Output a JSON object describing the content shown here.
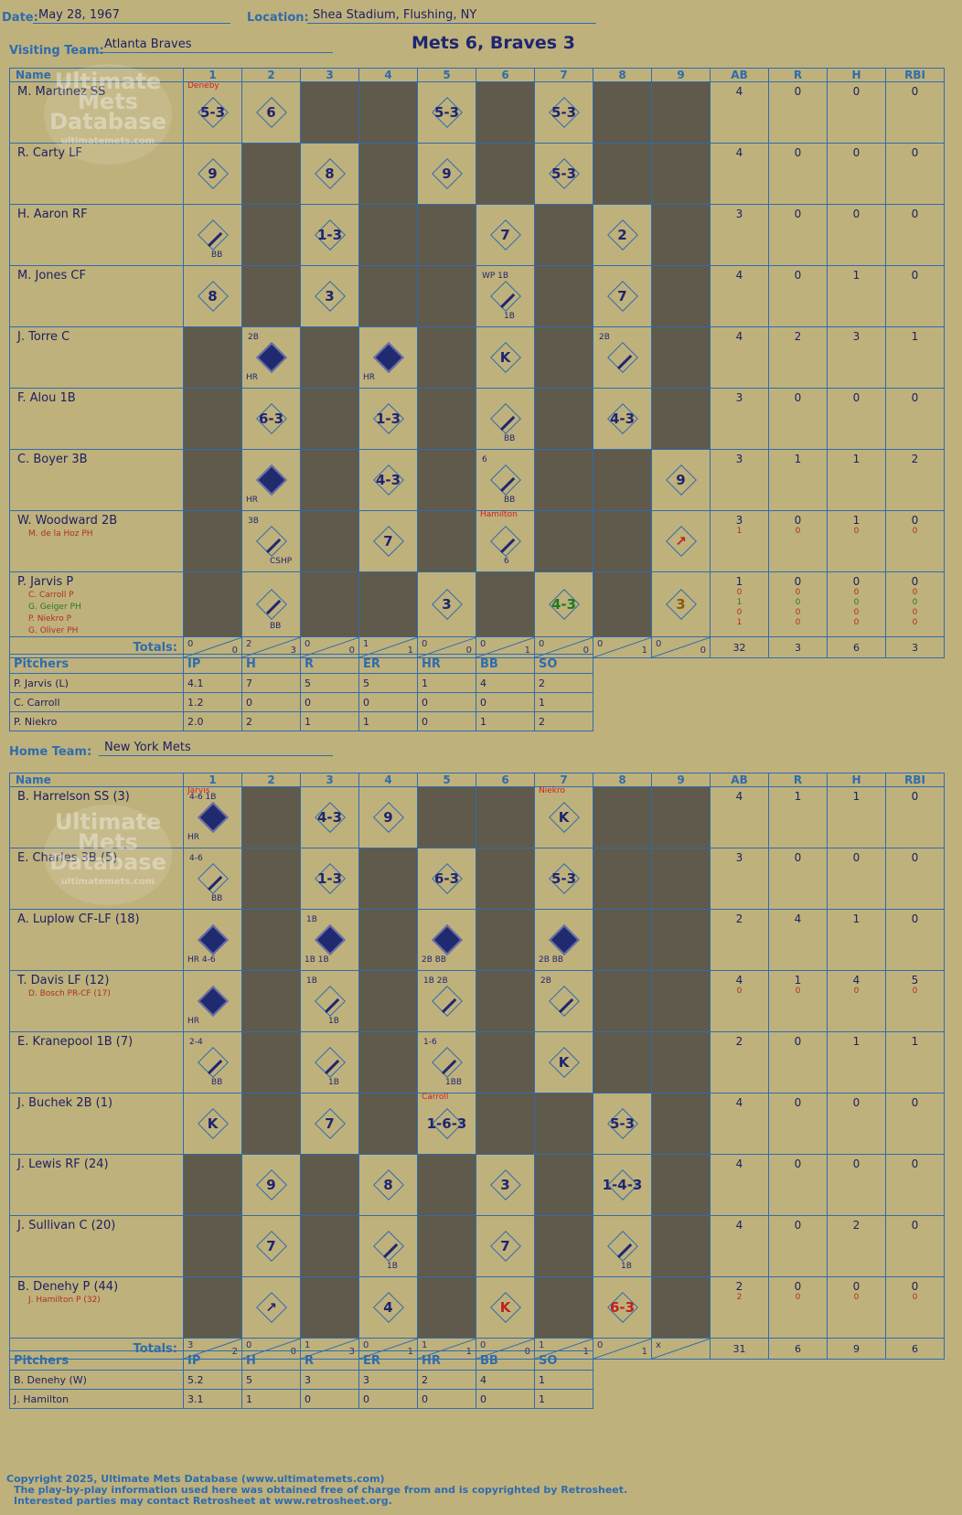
{
  "header": {
    "date_label": "Date:",
    "date": "May 28, 1967",
    "location_label": "Location:",
    "location": "Shea Stadium, Flushing, NY",
    "visiting_label": "Visiting Team:",
    "visiting_team": "Atlanta Braves",
    "home_label": "Home Team:",
    "home_team": "New York Mets",
    "score": "Mets 6, Braves 3"
  },
  "columns": {
    "name": "Name",
    "innings": [
      "1",
      "2",
      "3",
      "4",
      "5",
      "6",
      "7",
      "8",
      "9"
    ],
    "stats": [
      "AB",
      "R",
      "H",
      "RBI"
    ]
  },
  "pitch_columns": [
    "IP",
    "H",
    "R",
    "ER",
    "HR",
    "BB",
    "SO"
  ],
  "labels": {
    "totals": "Totals:",
    "pitchers": "Pitchers",
    "r": "R",
    "h": "H"
  },
  "watermark": {
    "line1": "Ultimate",
    "line2": "Mets",
    "line3": "Database",
    "url": "ultimatemets.com"
  },
  "visitors": {
    "players": [
      {
        "name": "M. Martinez SS",
        "subs": [],
        "stats": [
          [
            "4"
          ],
          [
            "0"
          ],
          [
            "0"
          ],
          [
            "0"
          ]
        ]
      },
      {
        "name": "R. Carty LF",
        "subs": [],
        "stats": [
          [
            "4"
          ],
          [
            "0"
          ],
          [
            "0"
          ],
          [
            "0"
          ]
        ]
      },
      {
        "name": "H. Aaron RF",
        "subs": [],
        "stats": [
          [
            "3"
          ],
          [
            "0"
          ],
          [
            "0"
          ],
          [
            "0"
          ]
        ]
      },
      {
        "name": "M. Jones CF",
        "subs": [],
        "stats": [
          [
            "4"
          ],
          [
            "0"
          ],
          [
            "1"
          ],
          [
            "0"
          ]
        ]
      },
      {
        "name": "J. Torre C",
        "subs": [],
        "stats": [
          [
            "4"
          ],
          [
            "2"
          ],
          [
            "3"
          ],
          [
            "1"
          ]
        ]
      },
      {
        "name": "F. Alou 1B",
        "subs": [],
        "stats": [
          [
            "3"
          ],
          [
            "0"
          ],
          [
            "0"
          ],
          [
            "0"
          ]
        ]
      },
      {
        "name": "C. Boyer 3B",
        "subs": [],
        "stats": [
          [
            "3"
          ],
          [
            "1"
          ],
          [
            "1"
          ],
          [
            "2"
          ]
        ]
      },
      {
        "name": "W. Woodward 2B",
        "subs": [
          "M. de la Hoz PH"
        ],
        "stats": [
          [
            "3",
            "1"
          ],
          [
            "0",
            "0"
          ],
          [
            "1",
            "0"
          ],
          [
            "0",
            "0"
          ]
        ]
      },
      {
        "name": "P. Jarvis P",
        "subs": [
          "C. Carroll P",
          "G. Geiger PH",
          "P. Niekro P",
          "G. Oliver PH"
        ],
        "stats": [
          [
            "1",
            "0",
            "1",
            "0",
            "1"
          ],
          [
            "0",
            "0",
            "0",
            "0",
            "0"
          ],
          [
            "0",
            "0",
            "0",
            "0",
            "0"
          ],
          [
            "0",
            "0",
            "0",
            "0",
            "0"
          ]
        ]
      }
    ],
    "cells": [
      [
        {
          "t": "5-3",
          "note": "Deneby"
        },
        {
          "t": "6"
        },
        null,
        null,
        {
          "t": "5-3"
        },
        null,
        {
          "t": "5-3"
        },
        null,
        null
      ],
      [
        {
          "t": "9"
        },
        null,
        {
          "t": "8"
        },
        null,
        {
          "t": "9"
        },
        null,
        {
          "t": "5-3"
        },
        null,
        null
      ],
      [
        {
          "t": "",
          "bb": "BB"
        },
        null,
        {
          "t": "1-3"
        },
        null,
        null,
        {
          "t": "7"
        },
        null,
        {
          "t": "2"
        },
        null
      ],
      [
        {
          "t": "8"
        },
        null,
        {
          "t": "3"
        },
        null,
        null,
        {
          "t": "",
          "bb": "1B",
          "top": "WP 1B"
        },
        null,
        {
          "t": "7"
        },
        null
      ],
      [
        null,
        {
          "t": "",
          "filled": true,
          "bb": "HR",
          "top": "2B"
        },
        null,
        {
          "t": "",
          "filled": true,
          "bb": "HR"
        },
        null,
        {
          "t": "K"
        },
        null,
        {
          "t": "",
          "top": "2B"
        },
        null
      ],
      [
        null,
        {
          "t": "6-3"
        },
        null,
        {
          "t": "1-3"
        },
        null,
        {
          "t": "",
          "bb": "BB"
        },
        null,
        {
          "t": "4-3"
        },
        null
      ],
      [
        null,
        {
          "t": "",
          "filled": true,
          "bb": "HR"
        },
        null,
        {
          "t": "4-3"
        },
        null,
        {
          "t": "",
          "bb": "BB",
          "top": "6"
        },
        null,
        null,
        {
          "t": "9"
        }
      ],
      [
        null,
        {
          "t": "",
          "bb": "CSHP",
          "top": "3B"
        },
        null,
        {
          "t": "7"
        },
        null,
        {
          "t": "",
          "bb": "6",
          "note": "Hamilton"
        },
        null,
        null,
        {
          "t": "↗",
          "cls": "red"
        }
      ],
      [
        null,
        {
          "t": "",
          "bb": "BB"
        },
        null,
        null,
        {
          "t": "3"
        },
        null,
        {
          "t": "4-3",
          "cls": "grn"
        },
        null,
        {
          "t": "3",
          "cls": "brn"
        }
      ]
    ],
    "dark": [
      [
        0,
        0,
        1,
        1,
        0,
        1,
        0,
        1,
        1
      ],
      [
        0,
        1,
        0,
        1,
        0,
        1,
        0,
        1,
        1
      ],
      [
        0,
        1,
        0,
        1,
        1,
        0,
        1,
        0,
        1
      ],
      [
        0,
        1,
        0,
        1,
        1,
        0,
        1,
        0,
        1
      ],
      [
        1,
        0,
        1,
        0,
        1,
        0,
        1,
        0,
        1
      ],
      [
        1,
        0,
        1,
        0,
        1,
        0,
        1,
        0,
        1
      ],
      [
        1,
        0,
        1,
        0,
        1,
        0,
        1,
        1,
        0
      ],
      [
        1,
        0,
        1,
        0,
        1,
        0,
        1,
        1,
        0
      ],
      [
        1,
        0,
        1,
        1,
        0,
        1,
        0,
        1,
        0
      ]
    ],
    "totals": [
      [
        "0",
        "0"
      ],
      [
        "2",
        "3"
      ],
      [
        "0",
        "0"
      ],
      [
        "1",
        "1"
      ],
      [
        "0",
        "0"
      ],
      [
        "0",
        "1"
      ],
      [
        "0",
        "0"
      ],
      [
        "0",
        "1"
      ],
      [
        "0",
        "0"
      ]
    ],
    "totals_stats": [
      "32",
      "3",
      "6",
      "3"
    ],
    "pitchers": [
      {
        "name": "P. Jarvis (L)",
        "v": [
          "4.1",
          "7",
          "5",
          "5",
          "1",
          "4",
          "2"
        ]
      },
      {
        "name": "C. Carroll",
        "v": [
          "1.2",
          "0",
          "0",
          "0",
          "0",
          "0",
          "1"
        ]
      },
      {
        "name": "P. Niekro",
        "v": [
          "2.0",
          "2",
          "1",
          "1",
          "0",
          "1",
          "2"
        ]
      }
    ]
  },
  "home": {
    "players": [
      {
        "name": "B. Harrelson SS (3)",
        "subs": [],
        "stats": [
          [
            "4"
          ],
          [
            "1"
          ],
          [
            "1"
          ],
          [
            "0"
          ]
        ]
      },
      {
        "name": "E. Charles 3B (5)",
        "subs": [],
        "stats": [
          [
            "3"
          ],
          [
            "0"
          ],
          [
            "0"
          ],
          [
            "0"
          ]
        ]
      },
      {
        "name": "A. Luplow CF-LF (18)",
        "subs": [],
        "stats": [
          [
            "2"
          ],
          [
            "4"
          ],
          [
            "1"
          ],
          [
            "0"
          ]
        ]
      },
      {
        "name": "T. Davis LF (12)",
        "subs": [
          "D. Bosch PR-CF (17)"
        ],
        "stats": [
          [
            "4",
            "0"
          ],
          [
            "1",
            "0"
          ],
          [
            "4",
            "0"
          ],
          [
            "5",
            "0"
          ]
        ]
      },
      {
        "name": "E. Kranepool 1B (7)",
        "subs": [],
        "stats": [
          [
            "2"
          ],
          [
            "0"
          ],
          [
            "1"
          ],
          [
            "1"
          ]
        ]
      },
      {
        "name": "J. Buchek 2B (1)",
        "subs": [],
        "stats": [
          [
            "4"
          ],
          [
            "0"
          ],
          [
            "0"
          ],
          [
            "0"
          ]
        ]
      },
      {
        "name": "J. Lewis RF (24)",
        "subs": [],
        "stats": [
          [
            "4"
          ],
          [
            "0"
          ],
          [
            "0"
          ],
          [
            "0"
          ]
        ]
      },
      {
        "name": "J. Sullivan C (20)",
        "subs": [],
        "stats": [
          [
            "4"
          ],
          [
            "0"
          ],
          [
            "2"
          ],
          [
            "0"
          ]
        ]
      },
      {
        "name": "B. Denehy P (44)",
        "subs": [
          "J. Hamilton P (32)"
        ],
        "stats": [
          [
            "2",
            "2"
          ],
          [
            "0",
            "0"
          ],
          [
            "0",
            "0"
          ],
          [
            "0",
            "0"
          ]
        ]
      }
    ],
    "cells": [
      [
        {
          "t": "",
          "filled": true,
          "bb": "HR",
          "top": "4-6 1B",
          "note": "Jarvis"
        },
        null,
        {
          "t": "4-3"
        },
        {
          "t": "9"
        },
        null,
        null,
        {
          "t": "K",
          "note": "Niekro"
        },
        null,
        null
      ],
      [
        {
          "t": "",
          "bb": "BB",
          "top": "4-6"
        },
        null,
        {
          "t": "1-3"
        },
        null,
        {
          "t": "6-3"
        },
        null,
        {
          "t": "5-3"
        },
        null,
        null
      ],
      [
        {
          "t": "",
          "filled": true,
          "bb": "HR 4-6"
        },
        null,
        {
          "t": "",
          "filled": true,
          "bb": "1B 1B",
          "top": "1B"
        },
        null,
        {
          "t": "",
          "filled": true,
          "bb": "2B BB"
        },
        null,
        {
          "t": "",
          "filled": true,
          "bb": "2B BB"
        },
        null,
        null
      ],
      [
        {
          "t": "",
          "filled": true,
          "bb": "HR"
        },
        null,
        {
          "t": "",
          "bb": "1B",
          "top": "1B"
        },
        null,
        {
          "t": "",
          "top": "1B 2B"
        },
        null,
        {
          "t": "",
          "top": "2B"
        },
        null,
        null
      ],
      [
        {
          "t": "",
          "bb": "BB",
          "top": "2-4"
        },
        null,
        {
          "t": "",
          "bb": "1B"
        },
        null,
        {
          "t": "",
          "bb": "1BB",
          "top": "1-6"
        },
        null,
        {
          "t": "K"
        },
        null,
        null
      ],
      [
        {
          "t": "K"
        },
        null,
        {
          "t": "7"
        },
        null,
        {
          "t": "1-6-3",
          "note": "Carroll"
        },
        null,
        null,
        {
          "t": "5-3"
        },
        null
      ],
      [
        null,
        {
          "t": "9"
        },
        null,
        {
          "t": "8"
        },
        null,
        {
          "t": "3"
        },
        null,
        {
          "t": "1-4-3"
        },
        null
      ],
      [
        null,
        {
          "t": "7"
        },
        null,
        {
          "t": "",
          "bb": "1B"
        },
        null,
        {
          "t": "7"
        },
        null,
        {
          "t": "",
          "bb": "1B"
        },
        null
      ],
      [
        null,
        {
          "t": "↗"
        },
        null,
        {
          "t": "4"
        },
        null,
        {
          "t": "K",
          "cls": "red"
        },
        null,
        {
          "t": "6-3",
          "cls": "red"
        },
        null
      ]
    ],
    "dark": [
      [
        0,
        1,
        0,
        0,
        1,
        1,
        0,
        1,
        1
      ],
      [
        0,
        1,
        0,
        1,
        0,
        1,
        0,
        1,
        1
      ],
      [
        0,
        1,
        0,
        1,
        0,
        1,
        0,
        1,
        1
      ],
      [
        0,
        1,
        0,
        1,
        0,
        1,
        0,
        1,
        1
      ],
      [
        0,
        1,
        0,
        1,
        0,
        1,
        0,
        1,
        1
      ],
      [
        0,
        1,
        0,
        1,
        0,
        1,
        1,
        0,
        1
      ],
      [
        1,
        0,
        1,
        0,
        1,
        0,
        1,
        0,
        1
      ],
      [
        1,
        0,
        1,
        0,
        1,
        0,
        1,
        0,
        1
      ],
      [
        1,
        0,
        1,
        0,
        1,
        0,
        1,
        0,
        1
      ]
    ],
    "totals": [
      [
        "3",
        "2"
      ],
      [
        "0",
        "0"
      ],
      [
        "1",
        "3"
      ],
      [
        "0",
        "1"
      ],
      [
        "1",
        "1"
      ],
      [
        "0",
        "0"
      ],
      [
        "1",
        "1"
      ],
      [
        "0",
        "1"
      ],
      [
        "x",
        ""
      ]
    ],
    "totals_stats": [
      "31",
      "6",
      "9",
      "6"
    ],
    "pitchers": [
      {
        "name": "B. Denehy (W)",
        "v": [
          "5.2",
          "5",
          "3",
          "3",
          "2",
          "4",
          "1"
        ]
      },
      {
        "name": "J. Hamilton",
        "v": [
          "3.1",
          "1",
          "0",
          "0",
          "0",
          "0",
          "1"
        ]
      }
    ]
  },
  "copyright": {
    "line1": "Copyright 2025, Ultimate Mets Database (www.ultimatemets.com)",
    "line2": "The play-by-play information used here was obtained free of charge from and is copyrighted by Retrosheet.",
    "line3": "Interested parties may contact Retrosheet at www.retrosheet.org."
  }
}
